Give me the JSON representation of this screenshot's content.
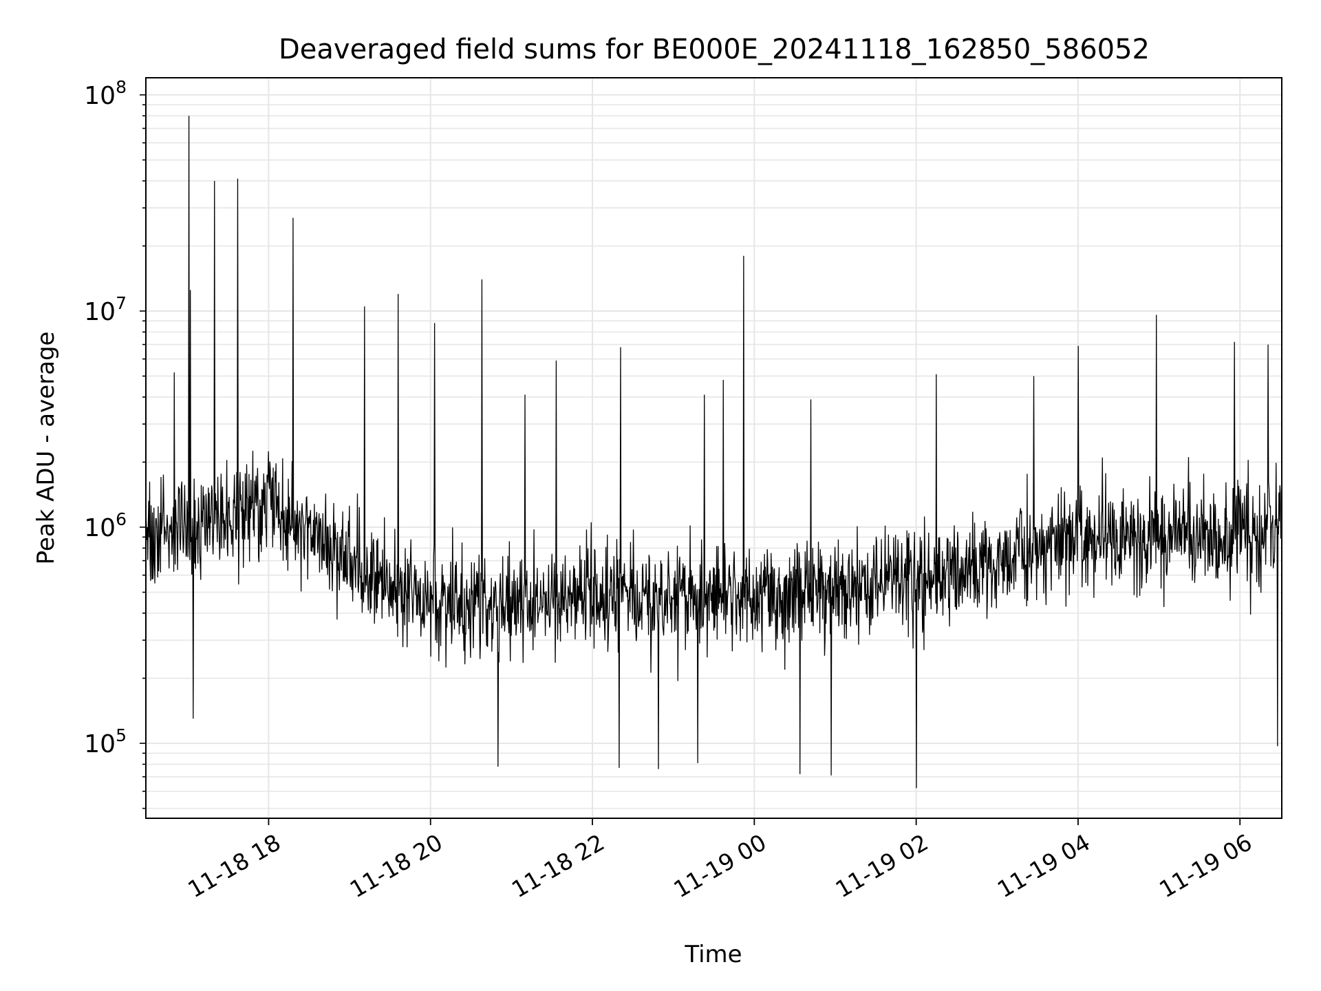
{
  "chart_data": {
    "type": "line",
    "title": "Deaveraged field sums for BE000E_20241118_162850_586052",
    "xlabel": "Time",
    "ylabel": "Peak ADU - average",
    "x_scale": "time",
    "y_scale": "log",
    "xlim": [
      "2024-11-18 16:29",
      "2024-11-19 06:31"
    ],
    "ylim": [
      45000,
      120000000
    ],
    "grid": true,
    "legend": null,
    "line_color": "#000000",
    "grid_color": "#e6e6e6",
    "x_ticks": [
      {
        "t": "2024-11-18 18:00",
        "label": "11-18 18"
      },
      {
        "t": "2024-11-18 20:00",
        "label": "11-18 20"
      },
      {
        "t": "2024-11-18 22:00",
        "label": "11-18 22"
      },
      {
        "t": "2024-11-19 00:00",
        "label": "11-19 00"
      },
      {
        "t": "2024-11-19 02:00",
        "label": "11-19 02"
      },
      {
        "t": "2024-11-19 04:00",
        "label": "11-19 04"
      },
      {
        "t": "2024-11-19 06:00",
        "label": "11-19 06"
      }
    ],
    "y_ticks": [
      {
        "v": 100000,
        "base": "10",
        "exp": "5"
      },
      {
        "v": 1000000,
        "base": "10",
        "exp": "6"
      },
      {
        "v": 10000000,
        "base": "10",
        "exp": "7"
      },
      {
        "v": 100000000,
        "base": "10",
        "exp": "8"
      }
    ],
    "series": [
      {
        "baseline": [
          [
            "2024-11-18 16:29",
            900000
          ],
          [
            "2024-11-18 17:00",
            900000
          ],
          [
            "2024-11-18 17:30",
            1150000
          ],
          [
            "2024-11-18 18:00",
            1300000
          ],
          [
            "2024-11-18 18:30",
            1000000
          ],
          [
            "2024-11-18 19:00",
            650000
          ],
          [
            "2024-11-18 19:30",
            520000
          ],
          [
            "2024-11-18 20:00",
            430000
          ],
          [
            "2024-11-18 20:30",
            420000
          ],
          [
            "2024-11-18 21:00",
            450000
          ],
          [
            "2024-11-18 22:00",
            470000
          ],
          [
            "2024-11-18 23:00",
            470000
          ],
          [
            "2024-11-19 00:00",
            480000
          ],
          [
            "2024-11-19 01:00",
            520000
          ],
          [
            "2024-11-19 02:00",
            580000
          ],
          [
            "2024-11-19 03:00",
            700000
          ],
          [
            "2024-11-19 04:00",
            850000
          ],
          [
            "2024-11-19 05:00",
            880000
          ],
          [
            "2024-11-19 06:00",
            950000
          ],
          [
            "2024-11-19 06:31",
            1000000
          ]
        ],
        "spikes": [
          [
            "2024-11-18 16:50",
            5200000
          ],
          [
            "2024-11-18 17:01",
            80000000
          ],
          [
            "2024-11-18 17:02",
            12500000
          ],
          [
            "2024-11-18 17:20",
            40000000
          ],
          [
            "2024-11-18 17:37",
            41000000
          ],
          [
            "2024-11-18 18:18",
            27000000
          ],
          [
            "2024-11-18 19:11",
            10500000
          ],
          [
            "2024-11-18 19:36",
            12000000
          ],
          [
            "2024-11-18 20:03",
            8800000
          ],
          [
            "2024-11-18 20:38",
            14000000
          ],
          [
            "2024-11-18 21:10",
            4100000
          ],
          [
            "2024-11-18 21:33",
            5900000
          ],
          [
            "2024-11-18 22:21",
            6800000
          ],
          [
            "2024-11-18 23:23",
            4100000
          ],
          [
            "2024-11-18 23:37",
            4800000
          ],
          [
            "2024-11-18 23:52",
            18000000
          ],
          [
            "2024-11-19 00:42",
            3900000
          ],
          [
            "2024-11-19 02:15",
            5100000
          ],
          [
            "2024-11-19 03:27",
            5000000
          ],
          [
            "2024-11-19 04:00",
            6900000
          ],
          [
            "2024-11-19 04:58",
            9600000
          ],
          [
            "2024-11-19 05:56",
            7200000
          ],
          [
            "2024-11-19 06:21",
            7000000
          ]
        ],
        "dips": [
          [
            "2024-11-18 17:04",
            130000
          ],
          [
            "2024-11-18 20:50",
            78000
          ],
          [
            "2024-11-18 22:20",
            77000
          ],
          [
            "2024-11-18 22:49",
            76000
          ],
          [
            "2024-11-18 23:18",
            81000
          ],
          [
            "2024-11-19 00:34",
            72000
          ],
          [
            "2024-11-19 00:57",
            71000
          ],
          [
            "2024-11-19 02:00",
            62000
          ],
          [
            "2024-11-19 06:28",
            97000
          ]
        ]
      }
    ]
  }
}
